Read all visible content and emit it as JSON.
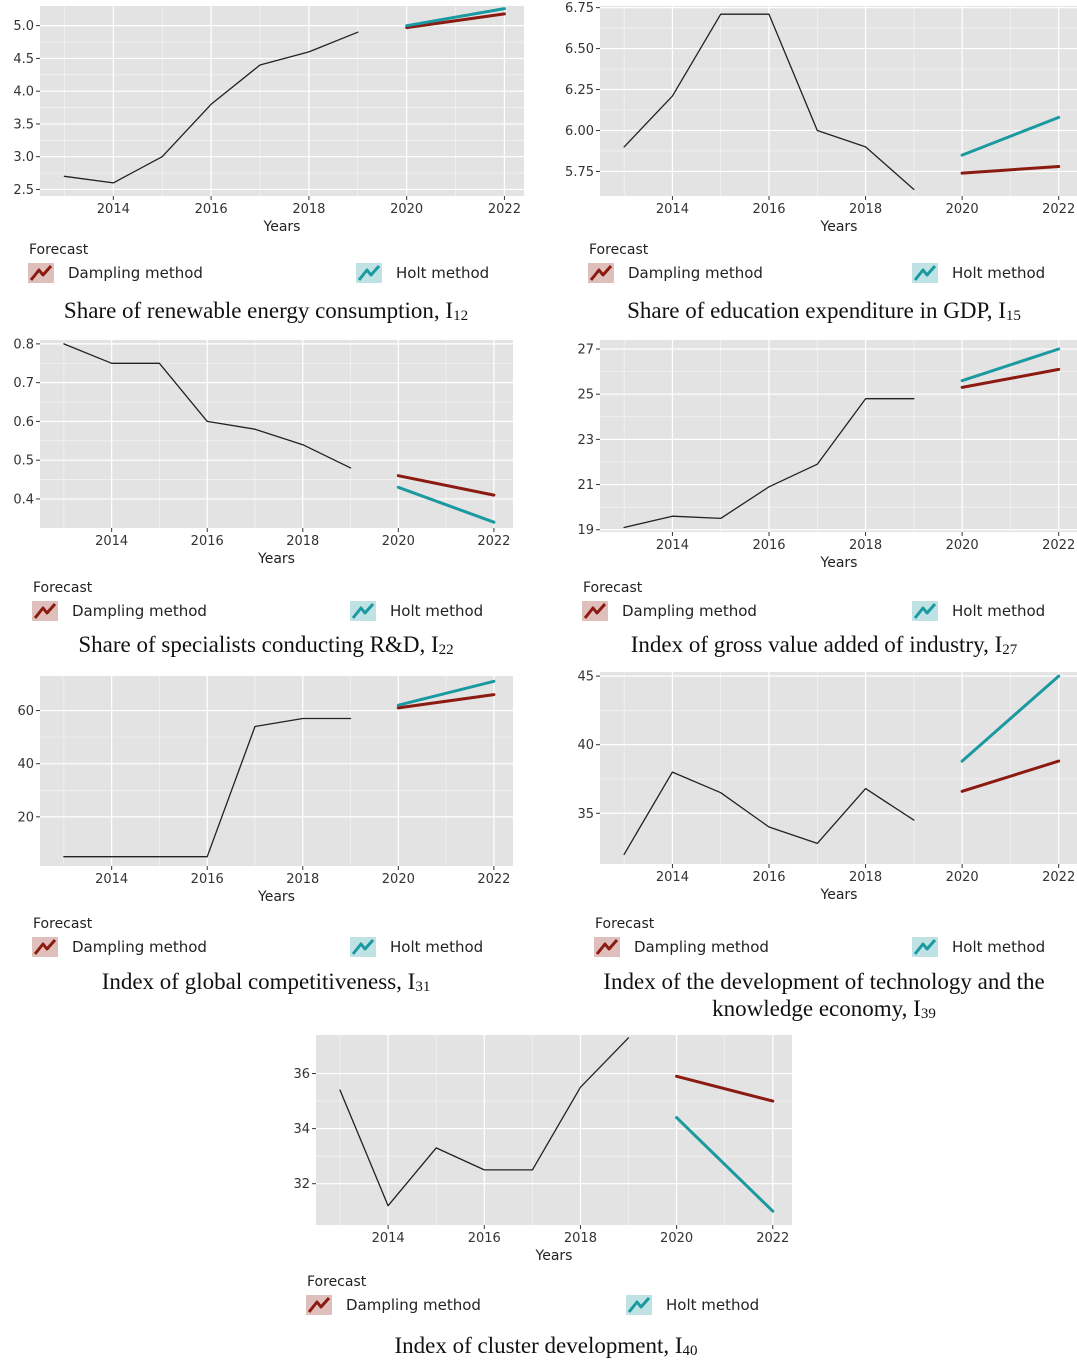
{
  "legend": {
    "title": "Forecast",
    "damping": "Dampling method",
    "holt": "Holt method"
  },
  "colors": {
    "panel_bg": "#e3e3e3",
    "grid": "#ffffff",
    "history": "#222222",
    "damping": "#8b1a10",
    "holt": "#1a9aa0"
  },
  "chart_data": [
    {
      "type": "line",
      "caption": "Share of renewable energy consumption, I",
      "caption_sub": "12",
      "xlabel": "Years",
      "xticks": [
        2014,
        2016,
        2018,
        2020,
        2022
      ],
      "xlim": [
        2012.5,
        2022.4
      ],
      "yticks": [
        "2.5",
        "3.0",
        "3.5",
        "4.0",
        "4.5",
        "5.0"
      ],
      "ylim": [
        2.4,
        5.3
      ],
      "grid": true,
      "legend_position": "bottom",
      "series": [
        {
          "role": "history",
          "x": [
            2013,
            2014,
            2015,
            2016,
            2017,
            2018,
            2019
          ],
          "values": [
            2.7,
            2.6,
            3.0,
            3.8,
            4.4,
            4.6,
            4.9
          ]
        },
        {
          "name": "Dampling method",
          "role": "damping",
          "x": [
            2020,
            2022
          ],
          "values": [
            4.97,
            5.18
          ]
        },
        {
          "name": "Holt method",
          "role": "holt",
          "x": [
            2020,
            2022
          ],
          "values": [
            5.0,
            5.26
          ]
        }
      ]
    },
    {
      "type": "line",
      "caption": "Share of education expenditure in GDP, I",
      "caption_sub": "15",
      "xlabel": "Years",
      "xticks": [
        2014,
        2016,
        2018,
        2020,
        2022
      ],
      "xlim": [
        2012.5,
        2022.4
      ],
      "yticks": [
        "5.75",
        "6.00",
        "6.25",
        "6.50",
        "6.75"
      ],
      "ylim": [
        5.6,
        6.76
      ],
      "grid": true,
      "legend_position": "bottom",
      "series": [
        {
          "role": "history",
          "x": [
            2013,
            2014,
            2015,
            2016,
            2017,
            2018,
            2019
          ],
          "values": [
            5.9,
            6.21,
            6.71,
            6.71,
            6.0,
            5.9,
            5.64
          ]
        },
        {
          "name": "Dampling method",
          "role": "damping",
          "x": [
            2020,
            2022
          ],
          "values": [
            5.74,
            5.78
          ]
        },
        {
          "name": "Holt method",
          "role": "holt",
          "x": [
            2020,
            2022
          ],
          "values": [
            5.85,
            6.08
          ]
        }
      ]
    },
    {
      "type": "line",
      "caption": "Share of specialists conducting R&D, I",
      "caption_sub": "22",
      "xlabel": "Years",
      "xticks": [
        2014,
        2016,
        2018,
        2020,
        2022
      ],
      "xlim": [
        2012.5,
        2022.4
      ],
      "yticks": [
        "0.4",
        "0.5",
        "0.6",
        "0.7",
        "0.8"
      ],
      "ylim": [
        0.325,
        0.81
      ],
      "grid": true,
      "legend_position": "bottom",
      "series": [
        {
          "role": "history",
          "x": [
            2013,
            2014,
            2015,
            2016,
            2017,
            2018,
            2019
          ],
          "values": [
            0.8,
            0.75,
            0.75,
            0.6,
            0.58,
            0.54,
            0.48
          ]
        },
        {
          "name": "Dampling method",
          "role": "damping",
          "x": [
            2020,
            2022
          ],
          "values": [
            0.46,
            0.41
          ]
        },
        {
          "name": "Holt method",
          "role": "holt",
          "x": [
            2020,
            2022
          ],
          "values": [
            0.43,
            0.34
          ]
        }
      ]
    },
    {
      "type": "line",
      "caption": "Index of gross value added of industry, I",
      "caption_sub": "27",
      "xlabel": "Years",
      "xticks": [
        2014,
        2016,
        2018,
        2020,
        2022
      ],
      "xlim": [
        2012.5,
        2022.4
      ],
      "yticks": [
        "19",
        "21",
        "23",
        "25",
        "27"
      ],
      "ylim": [
        18.9,
        27.4
      ],
      "grid": true,
      "legend_position": "bottom",
      "series": [
        {
          "role": "history",
          "x": [
            2013,
            2014,
            2015,
            2016,
            2017,
            2018,
            2019
          ],
          "values": [
            19.1,
            19.6,
            19.5,
            20.9,
            21.9,
            24.8,
            24.8
          ]
        },
        {
          "name": "Dampling method",
          "role": "damping",
          "x": [
            2020,
            2022
          ],
          "values": [
            25.3,
            26.1
          ]
        },
        {
          "name": "Holt method",
          "role": "holt",
          "x": [
            2020,
            2022
          ],
          "values": [
            25.6,
            27.0
          ]
        }
      ]
    },
    {
      "type": "line",
      "caption": "Index of global competitiveness, I",
      "caption_sub": "31",
      "xlabel": "Years",
      "xticks": [
        2014,
        2016,
        2018,
        2020,
        2022
      ],
      "xlim": [
        2012.5,
        2022.4
      ],
      "yticks": [
        "20",
        "40",
        "60"
      ],
      "ylim": [
        1.5,
        73
      ],
      "grid": true,
      "legend_position": "bottom",
      "series": [
        {
          "role": "history",
          "x": [
            2013,
            2014,
            2015,
            2016,
            2017,
            2018,
            2019
          ],
          "values": [
            5,
            5,
            5,
            5,
            54,
            57,
            57
          ]
        },
        {
          "name": "Dampling method",
          "role": "damping",
          "x": [
            2020,
            2022
          ],
          "values": [
            61,
            66
          ]
        },
        {
          "name": "Holt method",
          "role": "holt",
          "x": [
            2020,
            2022
          ],
          "values": [
            62,
            71
          ]
        }
      ]
    },
    {
      "type": "line",
      "caption": "Index of the development of technology and the knowledge economy, I",
      "caption_line1": "Index of the development of technology and the",
      "caption_line2": "knowledge economy, I",
      "caption_sub": "39",
      "xlabel": "Years",
      "xticks": [
        2014,
        2016,
        2018,
        2020,
        2022
      ],
      "xlim": [
        2012.5,
        2022.4
      ],
      "yticks": [
        "35",
        "40",
        "45"
      ],
      "ylim": [
        31.3,
        45.3
      ],
      "grid": true,
      "legend_position": "bottom",
      "series": [
        {
          "role": "history",
          "x": [
            2013,
            2014,
            2015,
            2016,
            2017,
            2018,
            2019
          ],
          "values": [
            32.0,
            38.0,
            36.5,
            34.0,
            32.8,
            36.8,
            34.5
          ]
        },
        {
          "name": "Dampling method",
          "role": "damping",
          "x": [
            2020,
            2022
          ],
          "values": [
            36.6,
            38.8
          ]
        },
        {
          "name": "Holt method",
          "role": "holt",
          "x": [
            2020,
            2022
          ],
          "values": [
            38.8,
            45.0
          ]
        }
      ]
    },
    {
      "type": "line",
      "caption": "Index of cluster development, I",
      "caption_sub": "40",
      "xlabel": "Years",
      "xticks": [
        2014,
        2016,
        2018,
        2020,
        2022
      ],
      "xlim": [
        2012.5,
        2022.4
      ],
      "yticks": [
        "32",
        "34",
        "36"
      ],
      "ylim": [
        30.5,
        37.4
      ],
      "grid": true,
      "legend_position": "bottom",
      "series": [
        {
          "role": "history",
          "x": [
            2013,
            2014,
            2015,
            2016,
            2017,
            2018,
            2019
          ],
          "values": [
            35.4,
            31.2,
            33.3,
            32.5,
            32.5,
            35.5,
            37.3
          ]
        },
        {
          "name": "Dampling method",
          "role": "damping",
          "x": [
            2020,
            2022
          ],
          "values": [
            35.9,
            35.0
          ]
        },
        {
          "name": "Holt method",
          "role": "holt",
          "x": [
            2020,
            2022
          ],
          "values": [
            34.4,
            31.0
          ]
        }
      ]
    }
  ]
}
